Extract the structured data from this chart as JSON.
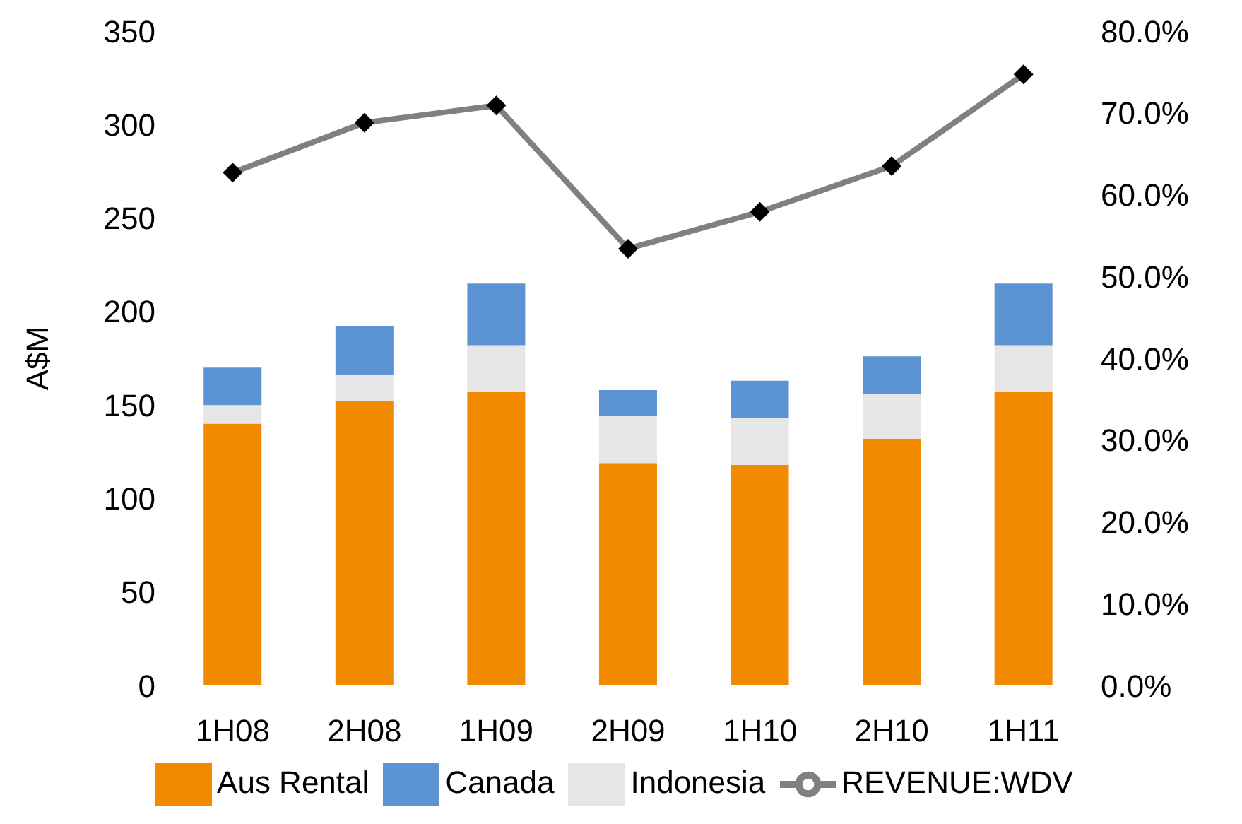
{
  "chart_data": {
    "type": "bar",
    "stacked": true,
    "ylabel": "A$M",
    "categories": [
      "1H08",
      "2H08",
      "1H09",
      "2H09",
      "1H10",
      "2H10",
      "1H11"
    ],
    "series": [
      {
        "name": "Aus Rental",
        "color": "#f28a00",
        "values": [
          140,
          152,
          157,
          119,
          118,
          132,
          157
        ]
      },
      {
        "name": "Indonesia",
        "color": "#e6e6e6",
        "values": [
          10,
          14,
          25,
          25,
          25,
          24,
          25
        ]
      },
      {
        "name": "Canada",
        "color": "#5b93d3",
        "values": [
          20,
          26,
          33,
          14,
          20,
          20,
          33
        ]
      },
      {
        "name": "REVENUE:WDV",
        "type": "line",
        "axis": "y2",
        "color": "#808080",
        "marker": "diamond",
        "line_style": "solid",
        "values": [
          62.7,
          68.8,
          70.9,
          53.4,
          57.9,
          63.5,
          74.7
        ]
      }
    ],
    "ylim": [
      0,
      350
    ],
    "yticks": [
      0,
      50,
      100,
      150,
      200,
      250,
      300,
      350
    ],
    "y2lim": [
      0,
      80
    ],
    "y2ticks": [
      {
        "value": 0,
        "label": "0.0%"
      },
      {
        "value": 10,
        "label": "10.0%"
      },
      {
        "value": 20,
        "label": "20.0%"
      },
      {
        "value": 30,
        "label": "30.0%"
      },
      {
        "value": 40,
        "label": "40.0%"
      },
      {
        "value": 50,
        "label": "50.0%"
      },
      {
        "value": 60,
        "label": "60.0%"
      },
      {
        "value": 70,
        "label": "70.0%"
      },
      {
        "value": 80,
        "label": "80.0%"
      }
    ],
    "grid": false,
    "legend": "bottom"
  }
}
